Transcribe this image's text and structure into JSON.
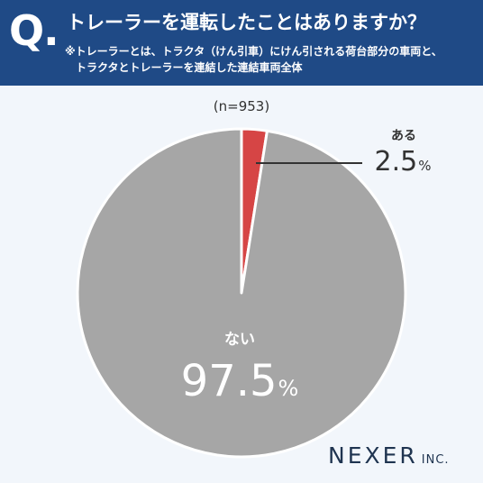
{
  "header": {
    "q_mark": "Q.",
    "title": "トレーラーを運転したことはありますか？",
    "note_line1": "※トレーラーとは、トラクタ（けん引車）にけん引される荷台部分の車両と、",
    "note_line2": "トラクタとトレーラーを連結した連結車両全体"
  },
  "sample_size": "(n=953)",
  "chart_data": {
    "type": "pie",
    "title": "",
    "slices": [
      {
        "label": "ある",
        "value": 2.5,
        "display": "2.5",
        "unit": "%",
        "color": "#d64545"
      },
      {
        "label": "ない",
        "value": 97.5,
        "display": "97.5",
        "unit": "%",
        "color": "#a6a6a6"
      }
    ],
    "start": "12 o'clock",
    "direction": "clockwise",
    "legend": "none"
  },
  "brand": {
    "name": "NEXER",
    "suffix": "INC."
  },
  "colors": {
    "header_bg": "#1f4a86",
    "page_bg": "#f2f6fb",
    "slice_border": "#ffffff"
  }
}
